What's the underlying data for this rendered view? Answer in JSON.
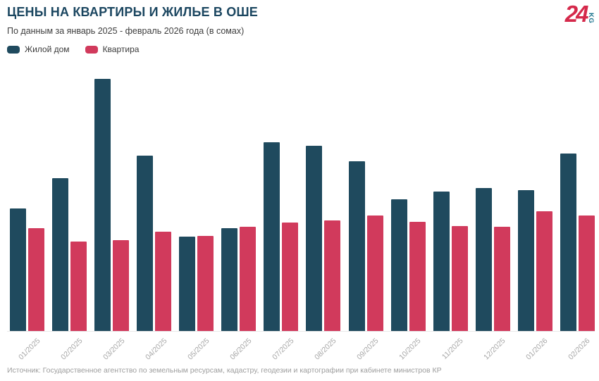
{
  "header": {
    "title": "ЦЕНЫ НА КВАРТИРЫ И ЖИЛЬЕ В ОШЕ",
    "subtitle": "По данным за январь 2025 - февраль 2026 года (в сомах)"
  },
  "logo": {
    "number": "24",
    "country_code": "KG",
    "red": "#d5294b",
    "teal": "#16708a"
  },
  "legend": {
    "items": [
      {
        "label": "Жилой дом",
        "color": "#1f4a5e"
      },
      {
        "label": "Квартира",
        "color": "#d13a5c"
      }
    ]
  },
  "chart_data": {
    "type": "bar",
    "title": "ЦЕНЫ НА КВАРТИРЫ И ЖИЛЬЕ В ОШЕ",
    "subtitle": "По данным за январь 2025 - февраль 2026 года (в сомах)",
    "categories": [
      "01/2025",
      "02/2025",
      "03/2025",
      "04/2025",
      "05/2025",
      "06/2025",
      "07/2025",
      "08/2025",
      "09/2025",
      "10/2025",
      "11/2025",
      "12/2025",
      "01/2026",
      "02/2026"
    ],
    "series": [
      {
        "name": "Жилой дом",
        "key": "zhiloy-dom",
        "color": "#1f4a5e",
        "values": [
          174,
          218,
          359,
          250,
          134,
          146,
          269,
          264,
          242,
          188,
          199,
          204,
          201,
          253
        ]
      },
      {
        "name": "Квартира",
        "key": "kvartira",
        "color": "#d13a5c",
        "values": [
          146,
          127,
          129,
          141,
          135,
          148,
          154,
          157,
          164,
          155,
          149,
          148,
          170,
          164
        ]
      }
    ],
    "ylim": [
      0,
      380
    ],
    "xlabel": "",
    "ylabel": "",
    "grid": false,
    "y_axis_visible": false,
    "legend_position": "top-left",
    "values_note": "относительные высоты столбцов; значения оси Y на инфографике не подписаны"
  },
  "footer": {
    "source": "Источник: Государственное агентство по земельным ресурсам, кадастру, геодезии и картографии при кабинете министров КР"
  }
}
